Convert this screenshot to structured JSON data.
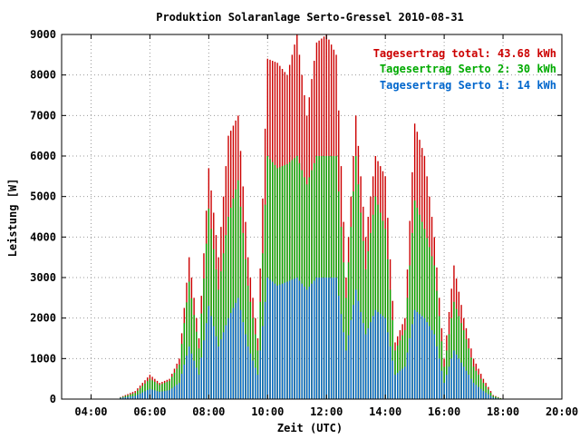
{
  "chart_data": {
    "type": "bar",
    "title": "Produktion Solaranlage Serto-Gressel 2010-08-31",
    "xlabel": "Zeit (UTC)",
    "ylabel": "Leistung [W]",
    "xlim": [
      "03:00",
      "20:00"
    ],
    "ylim": [
      0,
      9000
    ],
    "grid": true,
    "legend_position": "top-right",
    "x_ticks": [
      "04:00",
      "06:00",
      "08:00",
      "10:00",
      "12:00",
      "14:00",
      "16:00",
      "18:00",
      "20:00"
    ],
    "y_ticks": [
      "0",
      "1000",
      "2000",
      "3000",
      "4000",
      "5000",
      "6000",
      "7000",
      "8000",
      "9000"
    ],
    "legend": [
      {
        "label": "Tagesertrag total: 43.68 kWh",
        "color": "#cc0000"
      },
      {
        "label": "Tagesertrag Serto 2: 30 kWh",
        "color": "#00aa00"
      },
      {
        "label": "Tagesertrag Serto 1: 14 kWh",
        "color": "#0066cc"
      }
    ],
    "series_colors": {
      "total": "#cc0000",
      "serto2": "#00aa00",
      "serto1": "#0066cc"
    },
    "anchors": {
      "time": [
        "05:00",
        "05:30",
        "06:00",
        "06:20",
        "06:40",
        "07:00",
        "07:20",
        "07:40",
        "08:00",
        "08:20",
        "08:40",
        "09:00",
        "09:20",
        "09:40",
        "10:00",
        "10:20",
        "10:40",
        "11:00",
        "11:20",
        "11:40",
        "12:00",
        "12:20",
        "12:40",
        "13:00",
        "13:20",
        "13:40",
        "14:00",
        "14:20",
        "14:40",
        "15:00",
        "15:20",
        "15:40",
        "16:00",
        "16:20",
        "16:40",
        "17:00",
        "17:20",
        "17:40",
        "18:00"
      ],
      "total": [
        50,
        200,
        600,
        400,
        500,
        1000,
        3500,
        1500,
        5700,
        3500,
        6500,
        7000,
        3500,
        1500,
        8400,
        8300,
        8000,
        9000,
        7000,
        8800,
        9000,
        8500,
        3000,
        7000,
        4000,
        6000,
        5500,
        1400,
        2000,
        6800,
        6000,
        4000,
        1000,
        3300,
        2000,
        1000,
        500,
        100,
        0
      ],
      "serto2": [
        40,
        150,
        500,
        350,
        450,
        850,
        2900,
        1250,
        4700,
        2700,
        4500,
        5400,
        2800,
        1200,
        6000,
        5700,
        5800,
        6000,
        5300,
        6000,
        6000,
        6000,
        2500,
        6000,
        3200,
        5000,
        4200,
        1200,
        1700,
        4900,
        4200,
        3300,
        800,
        2400,
        1700,
        800,
        400,
        80,
        0
      ],
      "serto1": [
        30,
        80,
        250,
        180,
        220,
        400,
        1300,
        600,
        2300,
        1300,
        2000,
        2500,
        1300,
        600,
        3000,
        2800,
        2900,
        3000,
        2700,
        3000,
        3000,
        3000,
        1200,
        2700,
        1600,
        2200,
        2000,
        600,
        800,
        2200,
        2000,
        1600,
        400,
        1200,
        800,
        400,
        200,
        40,
        0
      ]
    }
  }
}
